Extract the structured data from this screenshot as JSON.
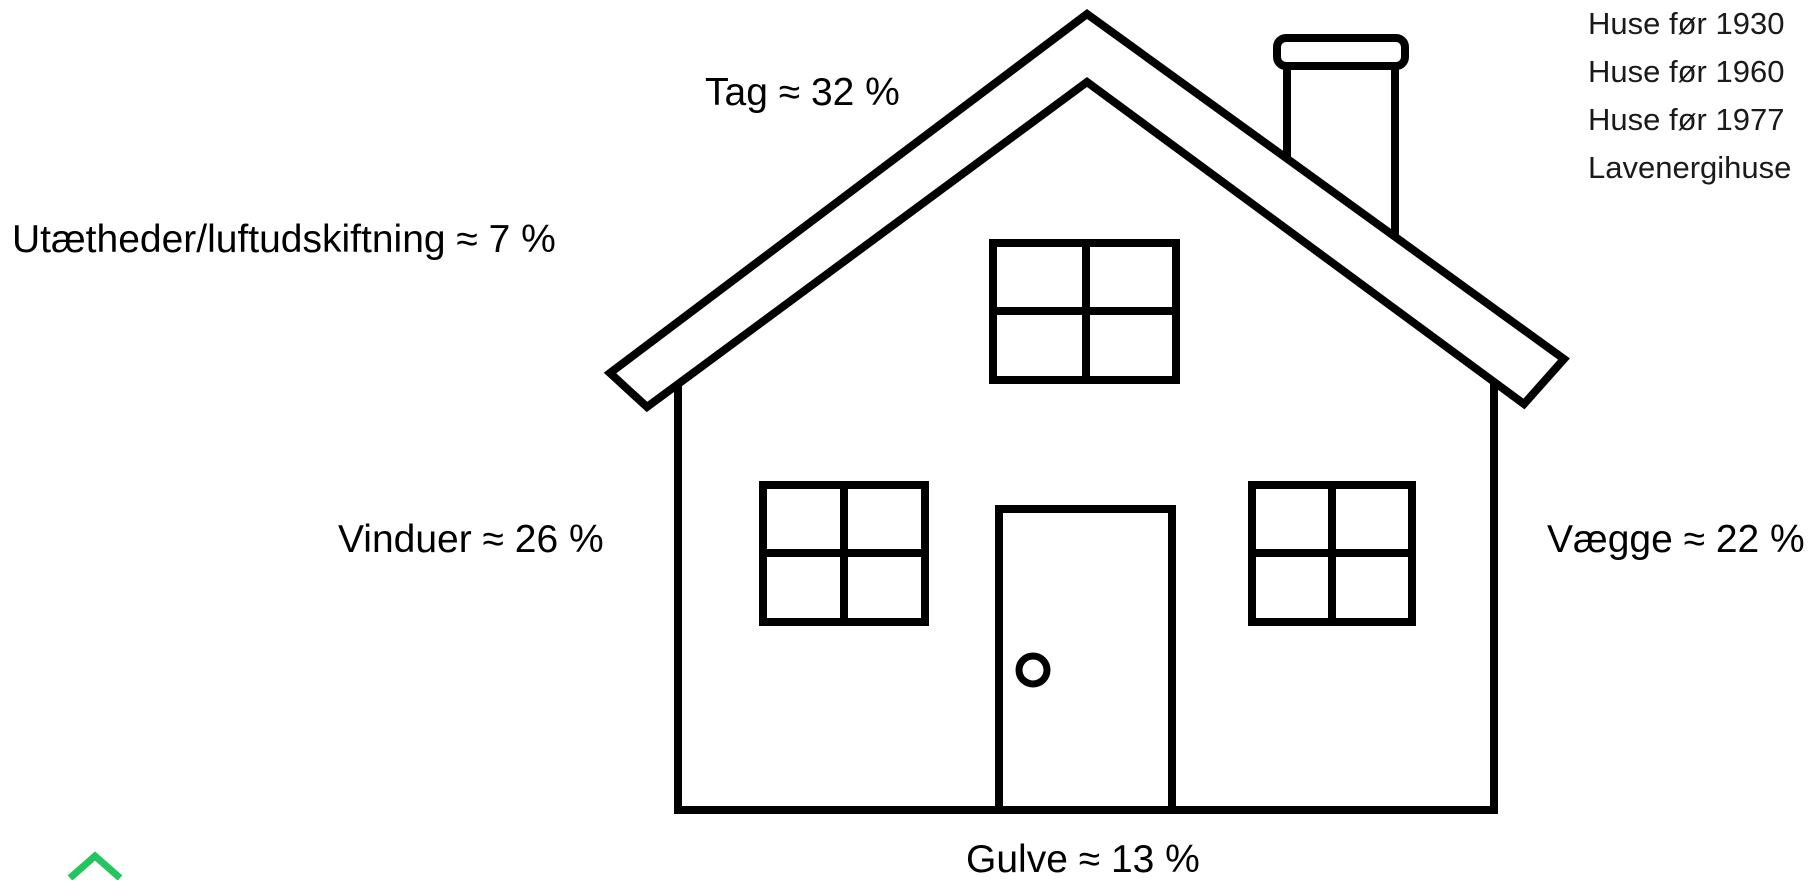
{
  "labels": {
    "roof": "Tag ≈ 32 %",
    "leaks": "Utætheder/luftudskiftning ≈ 7 %",
    "windows": "Vinduer ≈ 26 %",
    "walls": "Vægge ≈ 22 %",
    "floors": "Gulve ≈ 13 %"
  },
  "legend_items": [
    "Huse før 1930",
    "Huse før 1960",
    "Huse før 1977",
    "Lavenergihuse"
  ],
  "colors": {
    "stroke": "#000000",
    "logo": "#22c55e"
  }
}
